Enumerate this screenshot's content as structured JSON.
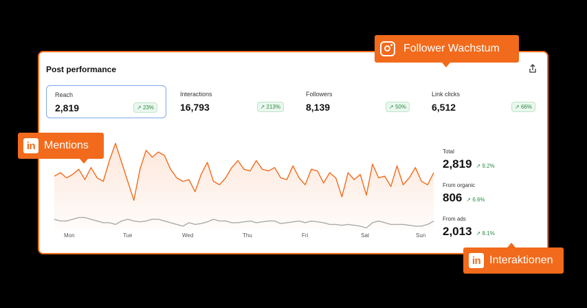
{
  "card": {
    "title": "Post performance",
    "share_icon": "share-icon"
  },
  "metrics": [
    {
      "label": "Reach",
      "value": "2,819",
      "change": "23%"
    },
    {
      "label": "Interactions",
      "value": "16,793",
      "change": "213%"
    },
    {
      "label": "Followers",
      "value": "8,139",
      "change": "50%"
    },
    {
      "label": "Link clicks",
      "value": "6,512",
      "change": "66%"
    }
  ],
  "stats": [
    {
      "label": "Total",
      "value": "2,819",
      "change": "9.2%"
    },
    {
      "label": "From organic",
      "value": "806",
      "change": "6.6%"
    },
    {
      "label": "From ads",
      "value": "2,013",
      "change": "8.1%"
    }
  ],
  "callouts": {
    "follower": {
      "text": "Follower Wachstum",
      "icon": "instagram-icon"
    },
    "mentions": {
      "text": "Mentions",
      "icon": "linkedin-icon"
    },
    "interaktionen": {
      "text": "Interaktionen",
      "icon": "linkedin-icon"
    }
  },
  "icon_text": {
    "linkedin": "in"
  },
  "colors": {
    "accent": "#f26a1b",
    "positive": "#2a8a45",
    "secondary_line": "#aaaaaa"
  },
  "chart_data": {
    "type": "line",
    "x_labels": [
      "Mon",
      "Tue",
      "Wed",
      "Thu",
      "Fri",
      "Sat",
      "Sun"
    ],
    "series": [
      {
        "values": [
          62,
          66,
          60,
          64,
          70,
          58,
          72,
          60,
          56,
          80,
          100,
          78,
          56,
          34,
          70,
          92,
          84,
          90,
          86,
          70,
          60,
          56,
          58,
          44,
          64,
          78,
          56,
          52,
          60,
          72,
          80,
          70,
          68,
          80,
          70,
          68,
          72,
          60,
          58,
          74,
          60,
          52,
          70,
          68,
          54,
          66,
          60,
          38,
          66,
          58,
          64,
          40,
          76,
          60,
          62,
          50,
          74,
          52,
          60,
          72,
          56,
          52,
          66
        ],
        "color": "#f26a1b"
      },
      {
        "values": [
          12,
          10,
          10,
          12,
          14,
          14,
          12,
          10,
          8,
          8,
          6,
          10,
          12,
          10,
          9,
          10,
          12,
          12,
          10,
          8,
          6,
          4,
          8,
          6,
          7,
          9,
          12,
          10,
          10,
          8,
          8,
          9,
          10,
          8,
          9,
          10,
          10,
          7,
          8,
          9,
          10,
          8,
          10,
          9,
          8,
          6,
          6,
          5,
          6,
          5,
          4,
          2,
          8,
          10,
          8,
          6,
          6,
          6,
          5,
          4,
          4,
          6,
          10
        ],
        "color": "#aaaaaa"
      }
    ],
    "grid": false,
    "legend": "none"
  }
}
